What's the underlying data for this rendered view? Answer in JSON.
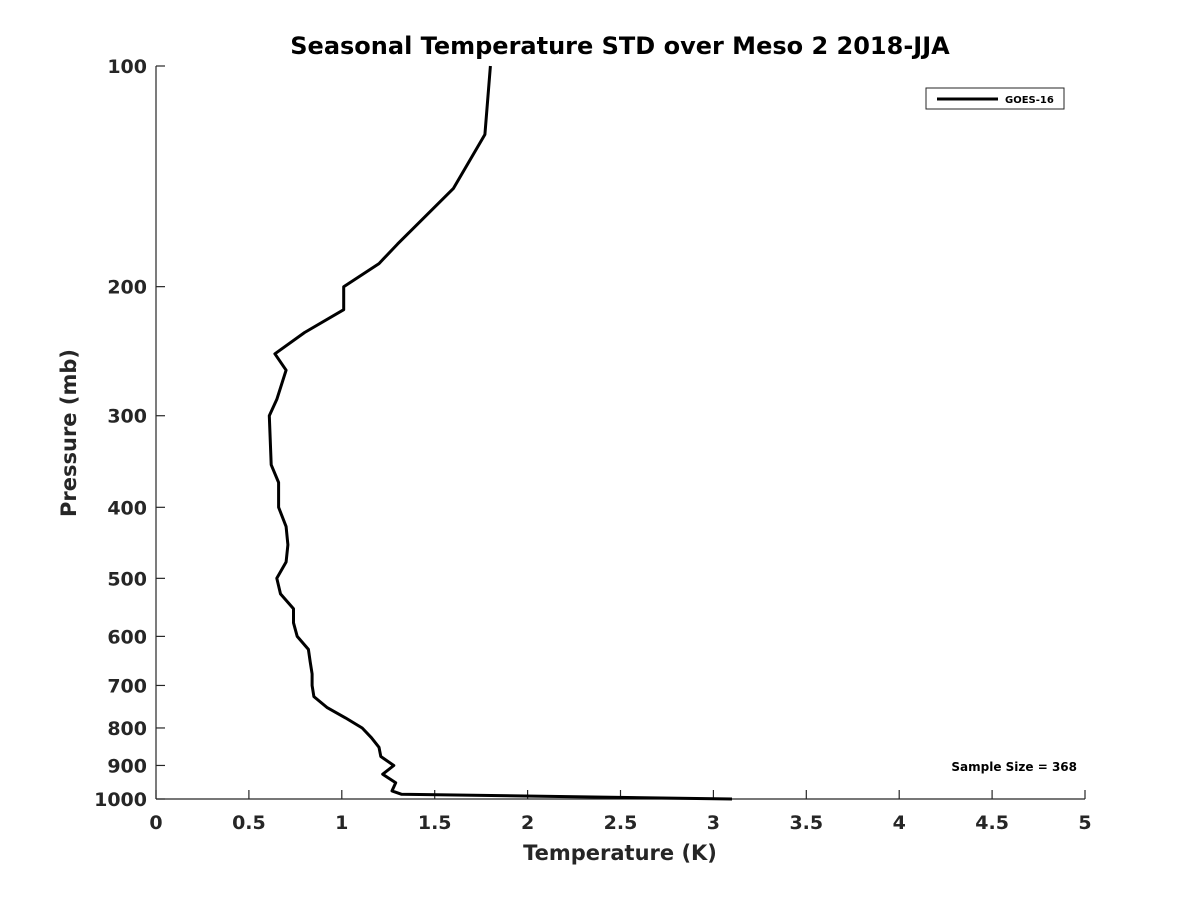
{
  "chart_data": {
    "type": "line",
    "title": "Seasonal Temperature STD over Meso 2  2018-JJA",
    "xlabel": "Temperature (K)",
    "ylabel": "Pressure (mb)",
    "xlim": [
      0,
      5
    ],
    "ylim": [
      100,
      1000
    ],
    "y_scale": "log",
    "y_reversed": true,
    "x_ticks": [
      0,
      0.5,
      1,
      1.5,
      2,
      2.5,
      3,
      3.5,
      4,
      4.5,
      5
    ],
    "x_tick_labels": [
      "0",
      "0.5",
      "1",
      "1.5",
      "2",
      "2.5",
      "3",
      "3.5",
      "4",
      "4.5",
      "5"
    ],
    "y_ticks": [
      100,
      200,
      300,
      400,
      500,
      600,
      700,
      800,
      900,
      1000
    ],
    "y_tick_labels": [
      "100",
      "200",
      "300",
      "400",
      "500",
      "600",
      "700",
      "800",
      "900",
      "1000"
    ],
    "grid": false,
    "legend_position": "top-right",
    "annotation": "Sample Size = 368",
    "series": [
      {
        "name": "GOES-16",
        "color": "#000000",
        "points": [
          [
            1.8,
            100
          ],
          [
            1.77,
            124
          ],
          [
            1.6,
            147
          ],
          [
            1.3,
            175
          ],
          [
            1.2,
            186
          ],
          [
            1.01,
            200
          ],
          [
            1.01,
            215
          ],
          [
            0.8,
            231
          ],
          [
            0.64,
            247
          ],
          [
            0.7,
            260
          ],
          [
            0.65,
            285
          ],
          [
            0.61,
            300
          ],
          [
            0.62,
            350
          ],
          [
            0.66,
            370
          ],
          [
            0.66,
            400
          ],
          [
            0.7,
            425
          ],
          [
            0.71,
            450
          ],
          [
            0.7,
            475
          ],
          [
            0.65,
            500
          ],
          [
            0.67,
            525
          ],
          [
            0.74,
            550
          ],
          [
            0.74,
            575
          ],
          [
            0.76,
            600
          ],
          [
            0.82,
            625
          ],
          [
            0.83,
            650
          ],
          [
            0.84,
            675
          ],
          [
            0.84,
            700
          ],
          [
            0.85,
            725
          ],
          [
            0.92,
            750
          ],
          [
            1.02,
            775
          ],
          [
            1.11,
            800
          ],
          [
            1.16,
            825
          ],
          [
            1.2,
            850
          ],
          [
            1.21,
            875
          ],
          [
            1.28,
            900
          ],
          [
            1.22,
            925
          ],
          [
            1.29,
            950
          ],
          [
            1.27,
            975
          ],
          [
            1.32,
            985
          ],
          [
            3.1,
            1000
          ]
        ]
      }
    ]
  }
}
